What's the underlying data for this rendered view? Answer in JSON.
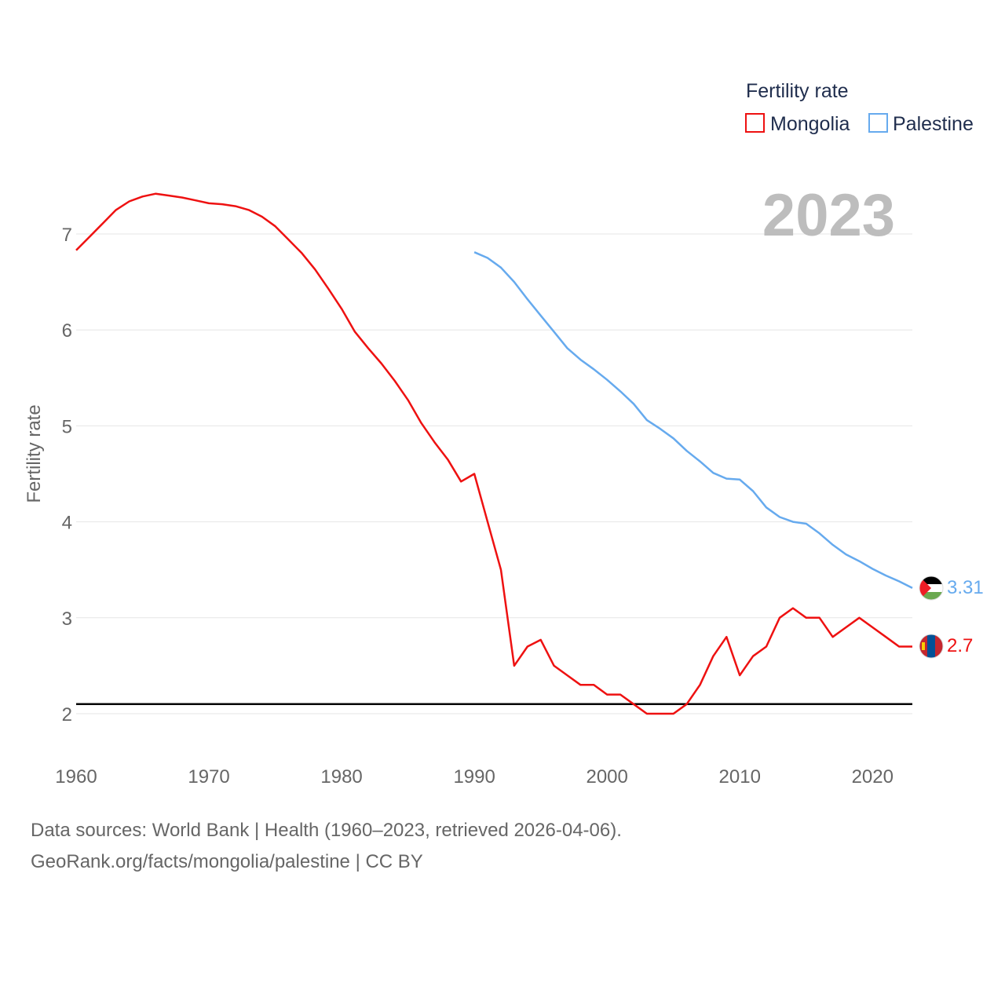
{
  "chart_data": {
    "type": "line",
    "title": "",
    "legend_title": "Fertility rate",
    "watermark_year": "2023",
    "ylabel": "Fertility rate",
    "xlabel": "",
    "xlim": [
      1960,
      2023
    ],
    "ylim": [
      1.5,
      7.5
    ],
    "x_ticks": [
      1960,
      1970,
      1980,
      1990,
      2000,
      2010,
      2020
    ],
    "y_ticks": [
      2,
      3,
      4,
      5,
      6,
      7
    ],
    "reference_line": 2.1,
    "legend_position": "top-right",
    "series": [
      {
        "name": "Mongolia",
        "color": "#ee1111",
        "end_label": "2.7",
        "flag": "mongolia-flag",
        "x": [
          1960,
          1961,
          1962,
          1963,
          1964,
          1965,
          1966,
          1967,
          1968,
          1969,
          1970,
          1971,
          1972,
          1973,
          1974,
          1975,
          1976,
          1977,
          1978,
          1979,
          1980,
          1981,
          1982,
          1983,
          1984,
          1985,
          1986,
          1987,
          1988,
          1989,
          1990,
          1991,
          1992,
          1993,
          1994,
          1995,
          1996,
          1997,
          1998,
          1999,
          2000,
          2001,
          2002,
          2003,
          2004,
          2005,
          2006,
          2007,
          2008,
          2009,
          2010,
          2011,
          2012,
          2013,
          2014,
          2015,
          2016,
          2017,
          2018,
          2019,
          2020,
          2021,
          2022,
          2023
        ],
        "values": [
          6.83,
          6.97,
          7.11,
          7.25,
          7.34,
          7.39,
          7.42,
          7.4,
          7.38,
          7.35,
          7.32,
          7.31,
          7.29,
          7.25,
          7.18,
          7.08,
          6.94,
          6.8,
          6.63,
          6.43,
          6.22,
          5.98,
          5.81,
          5.65,
          5.47,
          5.27,
          5.03,
          4.83,
          4.65,
          4.42,
          4.5,
          4.0,
          3.5,
          2.5,
          2.7,
          2.77,
          2.5,
          2.4,
          2.3,
          2.3,
          2.2,
          2.2,
          2.1,
          2.0,
          2.0,
          2.0,
          2.1,
          2.3,
          2.6,
          2.8,
          2.4,
          2.6,
          2.7,
          3.0,
          3.1,
          3.0,
          3.0,
          2.8,
          2.9,
          3.0,
          2.9,
          2.8,
          2.7,
          2.7
        ]
      },
      {
        "name": "Palestine",
        "color": "#66aaee",
        "end_label": "3.31",
        "flag": "palestine-flag",
        "x": [
          1990,
          1991,
          1992,
          1993,
          1994,
          1995,
          1996,
          1997,
          1998,
          1999,
          2000,
          2001,
          2002,
          2003,
          2004,
          2005,
          2006,
          2007,
          2008,
          2009,
          2010,
          2011,
          2012,
          2013,
          2014,
          2015,
          2016,
          2017,
          2018,
          2019,
          2020,
          2021,
          2022,
          2023
        ],
        "values": [
          6.81,
          6.75,
          6.65,
          6.5,
          6.32,
          6.15,
          5.98,
          5.81,
          5.69,
          5.59,
          5.48,
          5.36,
          5.23,
          5.06,
          4.97,
          4.87,
          4.74,
          4.63,
          4.51,
          4.45,
          4.44,
          4.32,
          4.15,
          4.05,
          4.0,
          3.98,
          3.88,
          3.76,
          3.66,
          3.59,
          3.51,
          3.44,
          3.38,
          3.31
        ]
      }
    ]
  },
  "footer": {
    "source_line": "Data sources: World Bank | Health (1960–2023, retrieved 2026-04-06).",
    "credit_line": "GeoRank.org/facts/mongolia/palestine | CC BY"
  }
}
